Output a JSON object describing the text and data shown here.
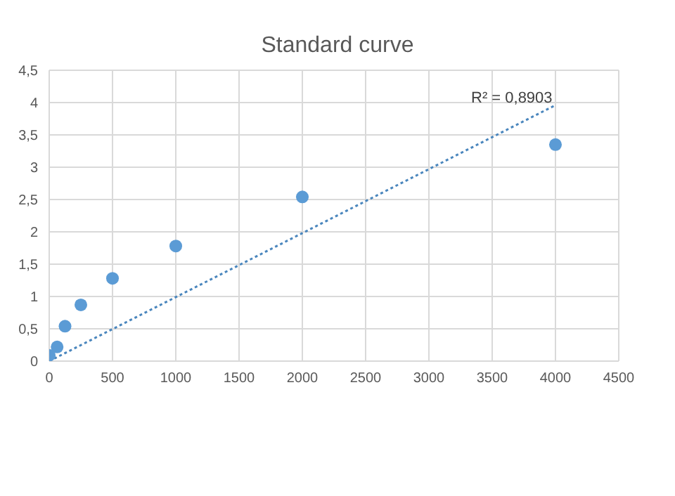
{
  "chart_data": {
    "type": "scatter",
    "title": "Standard curve",
    "grid": true,
    "annotations": [
      "R² = 0,8903"
    ],
    "xlim": [
      0,
      4500
    ],
    "xticks": [
      0,
      500,
      1000,
      1500,
      2000,
      2500,
      3000,
      3500,
      4000,
      4500
    ],
    "ylim": [
      0,
      4.5
    ],
    "yticks": [
      0,
      {
        "value": 0.5,
        "label": "0,5"
      },
      1,
      {
        "value": 1.5,
        "label": "1,5"
      },
      2,
      {
        "value": 2.5,
        "label": "2,5"
      },
      3,
      {
        "value": 3.5,
        "label": "3,5"
      },
      4,
      {
        "value": 4.5,
        "label": "4,5"
      }
    ],
    "series": [
      {
        "marker": "circle",
        "color": "#5b9bd5",
        "x": [
          0,
          62.5,
          125,
          250,
          500,
          1000,
          2000,
          4000
        ],
        "values": [
          0.09,
          0.22,
          0.54,
          0.87,
          1.28,
          1.78,
          2.54,
          3.35
        ]
      },
      {
        "type": "line",
        "color": "#4a86bd",
        "line_style": "dotted",
        "x": [
          0,
          4000
        ],
        "values": [
          0,
          3.96
        ]
      }
    ]
  }
}
